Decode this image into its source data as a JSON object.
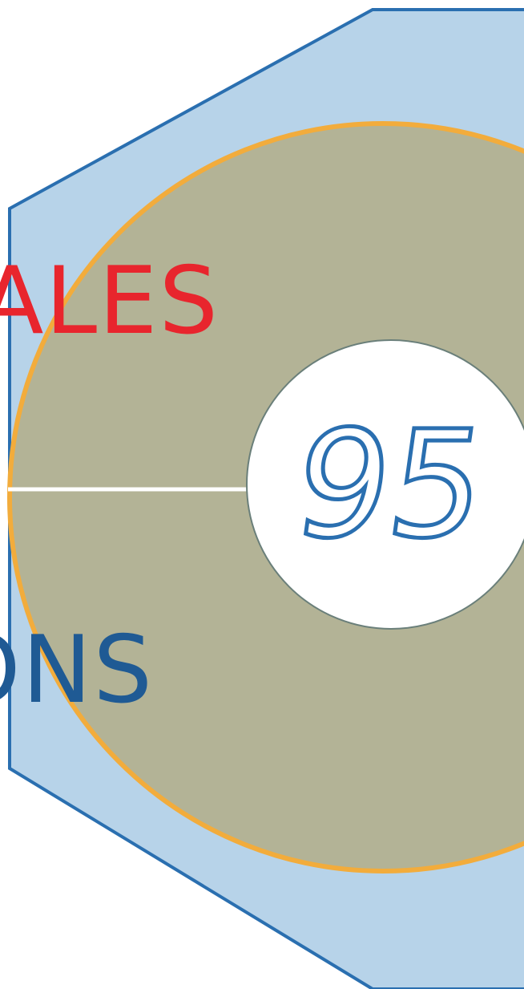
{
  "graphic": {
    "badge_number": "95",
    "top_word": "ALES",
    "bottom_word": "ONS"
  },
  "colors": {
    "hexagon_fill": "#b7d3e9",
    "hexagon_stroke": "#2a6fb0",
    "disc_fill": "#b3b396",
    "disc_stroke": "#f2ac3c",
    "badge_fill": "#ffffff",
    "badge_stroke": "#6a7f7a",
    "number_outline": "#2a6fb0",
    "connector": "#ffffff",
    "top_word": "#e8252d",
    "bottom_word": "#1f5a94"
  },
  "icons": {
    "background_shape": "hexagon",
    "center_shape": "circle-badge"
  }
}
